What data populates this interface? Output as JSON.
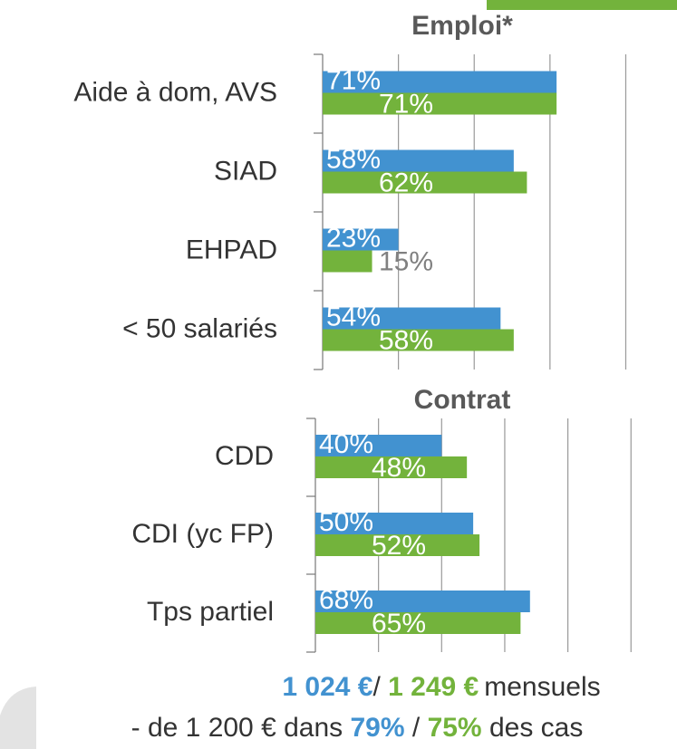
{
  "chart_data": [
    {
      "type": "bar",
      "orientation": "horizontal",
      "title": "Emploi*",
      "categories": [
        "Aide à dom, AVS",
        "SIAD",
        "EHPAD",
        "< 50 salariés"
      ],
      "series": [
        {
          "color": "#4292d0",
          "values": [
            71,
            58,
            23,
            54
          ],
          "value_labels": [
            "71%",
            "58%",
            "23%",
            "54%"
          ]
        },
        {
          "color": "#73b33c",
          "values": [
            71,
            62,
            15,
            58
          ],
          "value_labels": [
            "71%",
            "62%",
            "15%",
            "58%"
          ]
        }
      ],
      "xlim": [
        0,
        107
      ],
      "xticks": [
        0,
        23,
        46,
        69,
        92
      ],
      "grid": true
    },
    {
      "type": "bar",
      "orientation": "horizontal",
      "title": "Contrat",
      "categories": [
        "CDD",
        "CDI (yc FP)",
        "Tps partiel"
      ],
      "series": [
        {
          "color": "#4292d0",
          "values": [
            40,
            50,
            68
          ],
          "value_labels": [
            "40%",
            "50%",
            "68%"
          ]
        },
        {
          "color": "#73b33c",
          "values": [
            48,
            52,
            65
          ],
          "value_labels": [
            "48%",
            "52%",
            "65%"
          ]
        }
      ],
      "xlim": [
        0,
        114
      ],
      "xticks": [
        0,
        20,
        40,
        60,
        80,
        100
      ],
      "grid": true
    }
  ],
  "footer": {
    "line1": [
      "1 024 €",
      "/ ",
      "1 249 €",
      "mensuels"
    ],
    "line2": [
      "- de 1 200 € dans ",
      "79%",
      " / ",
      "75%",
      " des cas"
    ]
  }
}
